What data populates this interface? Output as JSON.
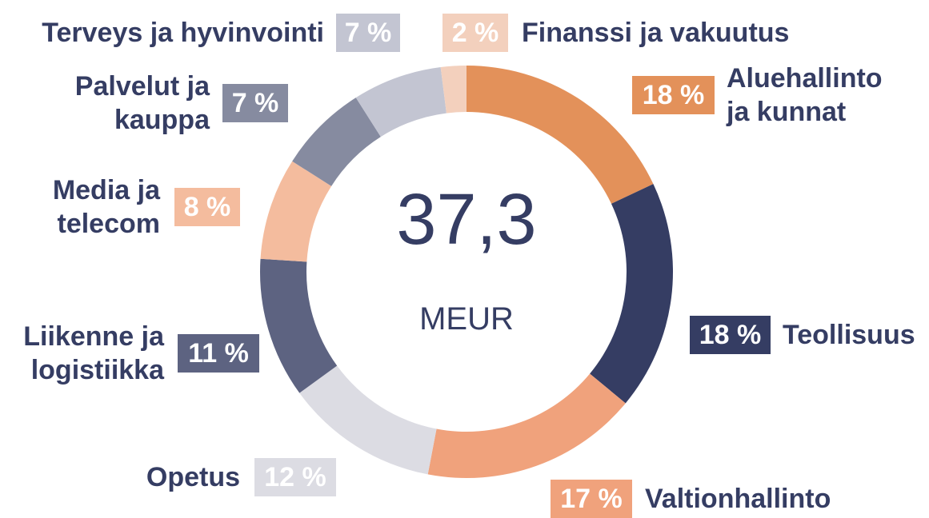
{
  "chart_data": {
    "type": "donut",
    "categories": [
      "Aluehallinto ja kunnat",
      "Teollisuus",
      "Valtionhallinto",
      "Opetus",
      "Liikenne ja logistiikka",
      "Media ja telecom",
      "Palvelut ja kauppa",
      "Terveys ja hyvinvointi",
      "Finanssi ja vakuutus"
    ],
    "values": [
      18,
      18,
      17,
      12,
      11,
      8,
      7,
      7,
      2
    ],
    "value_labels": [
      "18 %",
      "18 %",
      "17 %",
      "12 %",
      "11 %",
      "8 %",
      "7 %",
      "7 %",
      "2 %"
    ],
    "colors": [
      "#e3915a",
      "#353d63",
      "#f0a27c",
      "#dcdce3",
      "#5d6381",
      "#f4bc9e",
      "#868ba0",
      "#c3c5d2",
      "#f3d0bd"
    ],
    "center_value": "37,3",
    "center_unit": "MEUR"
  }
}
